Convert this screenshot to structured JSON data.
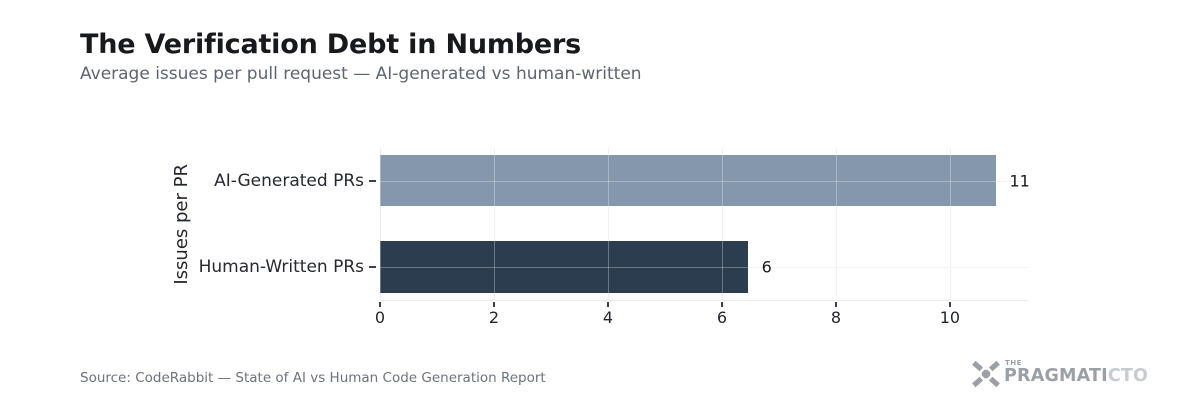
{
  "header": {
    "title": "The Verification Debt in Numbers",
    "subtitle": "Average issues per pull request — AI-generated vs human-written"
  },
  "chart_data": {
    "type": "bar",
    "orientation": "horizontal",
    "title": "The Verification Debt in Numbers",
    "subtitle": "Average issues per pull request — AI-generated vs human-written",
    "categories": [
      "AI-Generated PRs",
      "Human-Written PRs"
    ],
    "values": [
      10.8,
      6.45
    ],
    "value_labels": [
      "11",
      "6"
    ],
    "ylabel": "Issues per PR",
    "xlabel": "",
    "x_ticks": [
      0,
      2,
      4,
      6,
      8,
      10
    ],
    "xlim": [
      0,
      11.37
    ],
    "bar_colors": [
      "#8598ab",
      "#2b3d4f"
    ],
    "grid": true,
    "legend": "none"
  },
  "footer": {
    "source": "Source: CodeRabbit — State of AI vs Human Code Generation Report",
    "logo": {
      "the": "THE",
      "part1": "PRAGMATI",
      "part2": "CTO"
    }
  },
  "colors": {
    "background": "#ffffff",
    "title": "#17191d",
    "subtitle": "#5d6571",
    "grid": "#e9ebee",
    "axis_text": "#22262b",
    "source_text": "#6d737d",
    "logo_dark": "#9ba0a6",
    "logo_light": "#c7ccd1"
  }
}
